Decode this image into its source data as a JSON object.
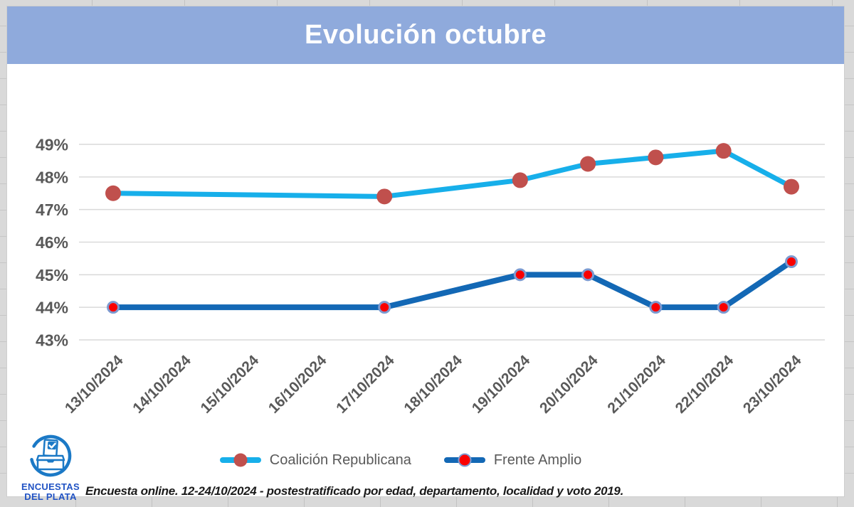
{
  "chart": {
    "title": "Evolución octubre",
    "title_band_color": "#8FAADC",
    "footer": "Encuesta online.  12-24/10/2024 - postestratificado por edad, departamento, localidad y voto 2019.",
    "logo": {
      "line1": "ENCUESTAS",
      "line2": "DEL PLATA",
      "color": "#1B79C6"
    }
  },
  "chart_data": {
    "type": "line",
    "title": "Evolución octubre",
    "categories": [
      "13/10/2024",
      "14/10/2024",
      "15/10/2024",
      "16/10/2024",
      "17/10/2024",
      "18/10/2024",
      "19/10/2024",
      "20/10/2024",
      "21/10/2024",
      "22/10/2024",
      "23/10/2024"
    ],
    "series": [
      {
        "name": "Coalición Republicana",
        "color": "#17AFEA",
        "marker_color": "#C0504D",
        "values": [
          47.5,
          null,
          null,
          null,
          47.4,
          null,
          47.9,
          48.4,
          48.6,
          48.8,
          47.7
        ]
      },
      {
        "name": "Frente Amplio",
        "color": "#1368B5",
        "marker_color": "#FA0000",
        "marker_ring": "#7D9AD0",
        "values": [
          44.0,
          null,
          null,
          null,
          44.0,
          null,
          45.0,
          45.0,
          44.0,
          44.0,
          45.4
        ]
      }
    ],
    "y_ticks": [
      49,
      48,
      47,
      46,
      45,
      44,
      43
    ],
    "y_tick_suffix": "%",
    "ylim": [
      42.6,
      49.2
    ],
    "grid": true,
    "gridline_color": "#D9D9D9",
    "axis_label_color": "#595959",
    "legend_position": "bottom",
    "notes": "missing dates 14-16/10 and 18/10 have no data points; lines connect across gaps"
  }
}
